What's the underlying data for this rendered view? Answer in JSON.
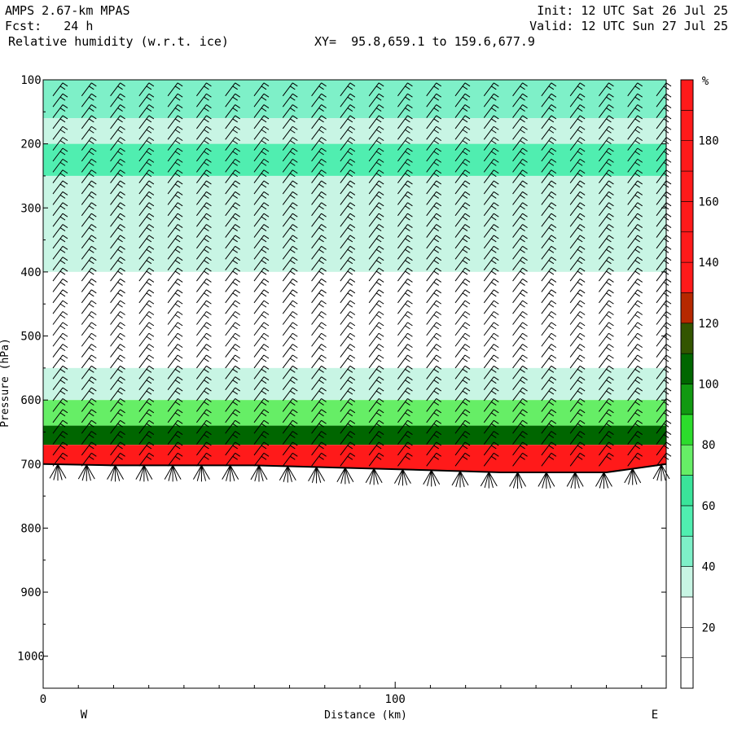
{
  "header": {
    "model": "AMPS 2.67-km MPAS",
    "fcst": "Fcst:   24 h",
    "field": "Relative humidity (w.r.t. ice)",
    "xy": "XY=  95.8,659.1 to 159.6,677.9",
    "init": "Init: 12 UTC Sat 26 Jul 25",
    "valid": "Valid: 12 UTC Sun 27 Jul 25"
  },
  "chart_data": {
    "type": "heatmap",
    "title": "Relative humidity (w.r.t. ice)",
    "xlabel": "Distance (km)",
    "ylabel": "Pressure (hPa)",
    "xlim": [
      0,
      177
    ],
    "ylim": [
      1050,
      100
    ],
    "x_ticks": [
      0,
      100
    ],
    "y_ticks": [
      100,
      200,
      300,
      400,
      500,
      600,
      700,
      800,
      900,
      1000
    ],
    "x_end_labels": [
      "W",
      "E"
    ],
    "colorbar": {
      "unit": "%",
      "levels": [
        0,
        10,
        20,
        30,
        40,
        50,
        60,
        70,
        80,
        90,
        100,
        110,
        120,
        130,
        140,
        150,
        160,
        170,
        180,
        190,
        200
      ],
      "tick_labels": [
        20,
        40,
        60,
        80,
        100,
        120,
        140,
        160,
        180
      ],
      "colors": [
        "#ffffff",
        "#ffffff",
        "#ffffff",
        "#c8f5e4",
        "#7ef0c8",
        "#50eeb0",
        "#3ae49a",
        "#66ee66",
        "#2cdc2c",
        "#119911",
        "#006600",
        "#335500",
        "#b62800",
        "#ff1a1a",
        "#ff1a1a",
        "#ff1a1a",
        "#ff1a1a",
        "#ff1a1a",
        "#ff1a1a",
        "#ff1a1a"
      ]
    },
    "terrain_pressure": [
      {
        "x": 0,
        "p": 700
      },
      {
        "x": 20,
        "p": 702
      },
      {
        "x": 60,
        "p": 702
      },
      {
        "x": 100,
        "p": 708
      },
      {
        "x": 130,
        "p": 713
      },
      {
        "x": 160,
        "p": 713
      },
      {
        "x": 177,
        "p": 700
      }
    ],
    "rh_bands": [
      {
        "p_top": 100,
        "p_bot": 160,
        "rh": 45
      },
      {
        "p_top": 160,
        "p_bot": 200,
        "rh": 35
      },
      {
        "p_top": 200,
        "p_bot": 250,
        "rh": 50
      },
      {
        "p_top": 250,
        "p_bot": 400,
        "rh": 35
      },
      {
        "p_top": 400,
        "p_bot": 550,
        "rh": 20
      },
      {
        "p_top": 550,
        "p_bot": 600,
        "rh": 35
      },
      {
        "p_top": 600,
        "p_bot": 640,
        "rh": 75
      },
      {
        "p_top": 640,
        "p_bot": 670,
        "rh": 105
      },
      {
        "p_top": 670,
        "p_bot": 702,
        "rh": 150
      }
    ]
  }
}
